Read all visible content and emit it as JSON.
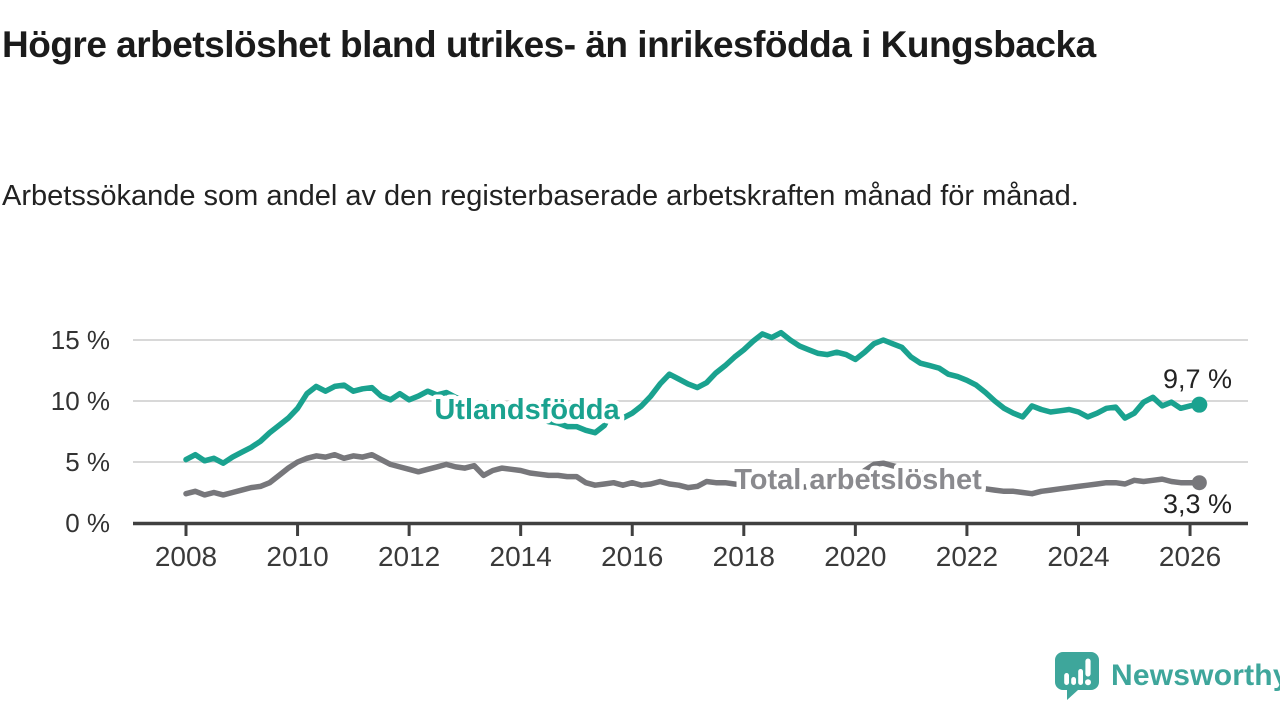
{
  "header": {
    "title": "Högre arbetslöshet bland utrikes- än inrikesfödda i Kungsbacka",
    "subtitle": "Arbetssökande som andel av den registerbaserade arbetskraften månad för månad."
  },
  "chart_data": {
    "type": "line",
    "title": "",
    "xlabel": "",
    "ylabel": "",
    "x_unit": "decimal_year",
    "x_start": 2008.0,
    "x_step_years": 0.166667,
    "x_axis_ticks": [
      2008,
      2010,
      2012,
      2014,
      2016,
      2018,
      2020,
      2022,
      2024,
      2026
    ],
    "y_ticks": [
      {
        "value": 0,
        "label": "0 %"
      },
      {
        "value": 5,
        "label": "5 %"
      },
      {
        "value": 10,
        "label": "10 %"
      },
      {
        "value": 15,
        "label": "15 %"
      }
    ],
    "ylim": [
      0,
      16.5
    ],
    "xlim": [
      2007.0,
      2027.0
    ],
    "grid": "horizontal",
    "legend_position": "inline-labels",
    "series": [
      {
        "name": "Utlandsfödda",
        "color": "#1aa28f",
        "label_color": "#1aa28f",
        "end_label": "9,7 %",
        "end_value": 9.7,
        "values": [
          5.2,
          5.6,
          5.1,
          5.3,
          4.9,
          5.4,
          5.8,
          6.2,
          6.7,
          7.4,
          8.0,
          8.6,
          9.4,
          10.6,
          11.2,
          10.8,
          11.2,
          11.3,
          10.8,
          11.0,
          11.1,
          10.4,
          10.1,
          10.6,
          10.1,
          10.4,
          10.8,
          10.5,
          10.7,
          10.3,
          10.0,
          9.6,
          9.7,
          9.3,
          9.4,
          9.0,
          9.0,
          8.6,
          8.7,
          8.3,
          8.2,
          7.9,
          7.9,
          7.6,
          7.4,
          8.0,
          9.5,
          8.6,
          9.0,
          9.6,
          10.4,
          11.4,
          12.2,
          11.8,
          11.4,
          11.1,
          11.5,
          12.3,
          12.9,
          13.6,
          14.2,
          14.9,
          15.5,
          15.2,
          15.6,
          15.0,
          14.5,
          14.2,
          13.9,
          13.8,
          14.0,
          13.8,
          13.4,
          14.0,
          14.7,
          15.0,
          14.7,
          14.4,
          13.6,
          13.1,
          12.9,
          12.7,
          12.2,
          12.0,
          11.7,
          11.3,
          10.7,
          10.0,
          9.4,
          9.0,
          8.7,
          9.6,
          9.3,
          9.1,
          9.2,
          9.3,
          9.1,
          8.7,
          9.0,
          9.4,
          9.5,
          8.6,
          9.0,
          9.9,
          10.3,
          9.6,
          9.9,
          9.4,
          9.6,
          9.7
        ]
      },
      {
        "name": "Total arbetslöshet",
        "color": "#77777b",
        "label_color": "#8a8a8e",
        "end_label": "3,3 %",
        "end_value": 3.3,
        "values": [
          2.4,
          2.6,
          2.3,
          2.5,
          2.3,
          2.5,
          2.7,
          2.9,
          3.0,
          3.3,
          3.9,
          4.5,
          5.0,
          5.3,
          5.5,
          5.4,
          5.6,
          5.3,
          5.5,
          5.4,
          5.6,
          5.2,
          4.8,
          4.6,
          4.4,
          4.2,
          4.4,
          4.6,
          4.8,
          4.6,
          4.5,
          4.7,
          3.9,
          4.3,
          4.5,
          4.4,
          4.3,
          4.1,
          4.0,
          3.9,
          3.9,
          3.8,
          3.8,
          3.3,
          3.1,
          3.2,
          3.3,
          3.1,
          3.3,
          3.1,
          3.2,
          3.4,
          3.2,
          3.1,
          2.9,
          3.0,
          3.4,
          3.3,
          3.3,
          3.2,
          3.1,
          3.0,
          3.0,
          2.9,
          3.0,
          2.9,
          2.9,
          3.0,
          3.1,
          3.2,
          3.3,
          3.4,
          3.6,
          4.3,
          4.8,
          4.9,
          4.7,
          4.5,
          4.3,
          4.1,
          3.9,
          3.7,
          3.5,
          3.3,
          3.1,
          2.9,
          2.8,
          2.7,
          2.6,
          2.6,
          2.5,
          2.4,
          2.6,
          2.7,
          2.8,
          2.9,
          3.0,
          3.1,
          3.2,
          3.3,
          3.3,
          3.2,
          3.5,
          3.4,
          3.5,
          3.6,
          3.4,
          3.3,
          3.3,
          3.3
        ]
      }
    ],
    "axis_color": "#404040",
    "grid_color": "#d8d8d8",
    "tick_label_color": "#3a3a3a",
    "value_label_color": "#232323"
  },
  "footer": {
    "brand": "Newsworthy",
    "brand_color": "#3ea69b"
  }
}
